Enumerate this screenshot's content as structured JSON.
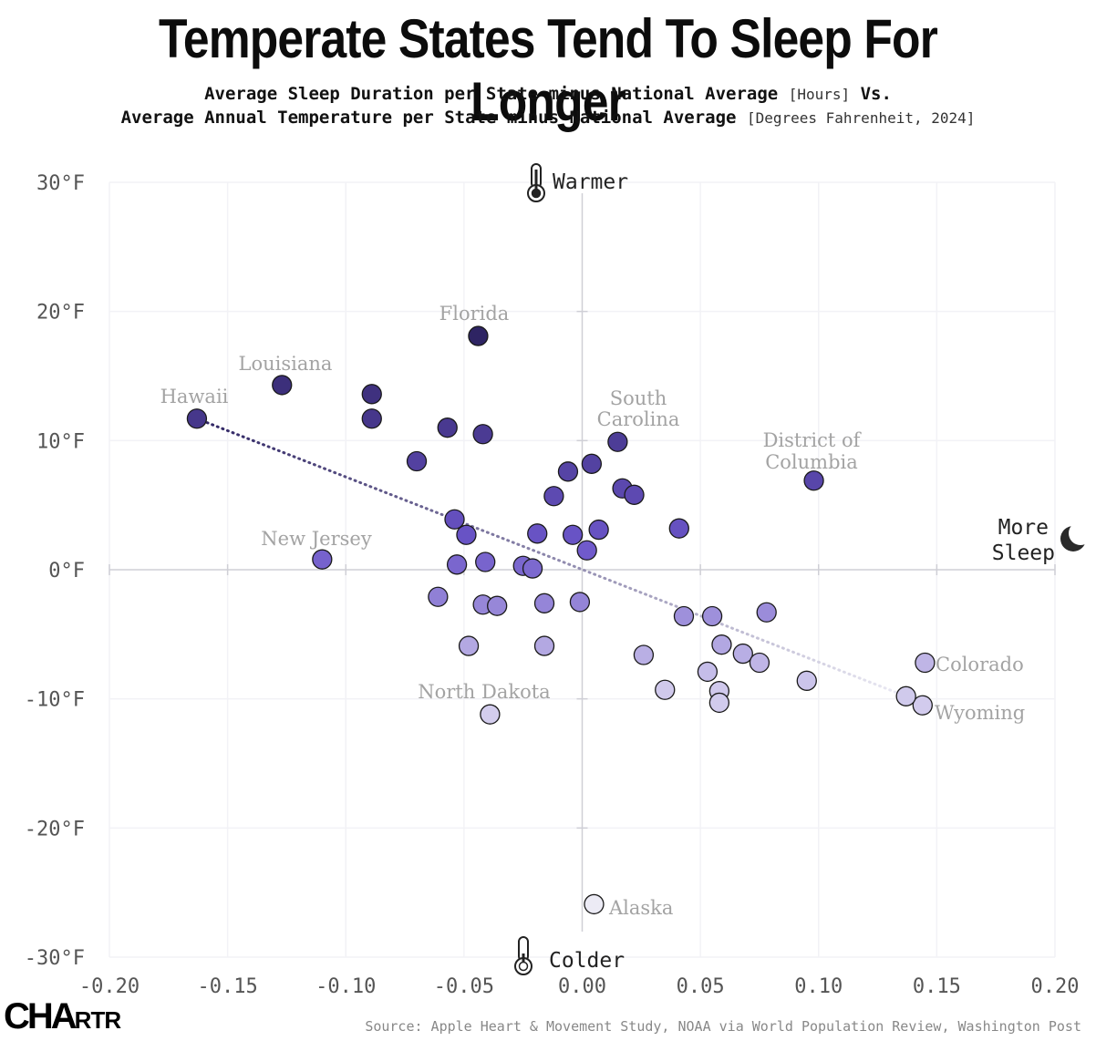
{
  "title": "Temperate States Tend To Sleep For Longer",
  "subtitle": {
    "line1_bold": "Average Sleep Duration per State minus National Average",
    "line1_light": "[Hours]",
    "line1_end": "Vs.",
    "line2_bold": "Average Annual Temperature per State minus National Average",
    "line2_light": "[Degrees Fahrenheit, 2024]"
  },
  "source": "Source: Apple Heart & Movement Study, NOAA via World Population Review, Washington Post",
  "logo": {
    "main": "CHA",
    "small": "RTR"
  },
  "colors": {
    "dark": "#2e2463",
    "mid": "#6b55c9",
    "light": "#cfc8ec",
    "lightest": "#ecebf5",
    "axis": "#cfcfd6",
    "grid": "#f2f2f6",
    "label": "#a3a3a3",
    "tick": "#555555"
  },
  "chart_data": {
    "type": "scatter",
    "xlim": [
      -0.2,
      0.2
    ],
    "ylim": [
      -30,
      30
    ],
    "x_ticks": [
      "-0.20",
      "-0.15",
      "-0.10",
      "-0.05",
      "0.00",
      "0.05",
      "0.10",
      "0.15",
      "0.20"
    ],
    "y_ticks": [
      "30°F",
      "20°F",
      "10°F",
      "0°F",
      "-10°F",
      "-20°F",
      "-30°F"
    ],
    "x_tick_values": [
      -0.2,
      -0.15,
      -0.1,
      -0.05,
      0.0,
      0.05,
      0.1,
      0.15,
      0.2
    ],
    "y_tick_values": [
      30,
      20,
      10,
      0,
      -10,
      -20,
      -30
    ],
    "axis_annotations": {
      "top": "Warmer",
      "bottom": "Colder",
      "right_line1": "More",
      "right_line2": "Sleep",
      "top_icon": "thermometer-hot-icon",
      "bottom_icon": "thermometer-cold-icon",
      "right_icon": "moon-icon"
    },
    "trendline": {
      "x": [
        -0.163,
        0.137
      ],
      "y": [
        11.7,
        -9.8
      ]
    },
    "points": [
      {
        "x": -0.163,
        "y": 11.7,
        "label": "Hawaii"
      },
      {
        "x": -0.127,
        "y": 14.3,
        "label": "Louisiana"
      },
      {
        "x": -0.11,
        "y": 0.8,
        "label": "New Jersey"
      },
      {
        "x": -0.044,
        "y": 18.1,
        "label": "Florida"
      },
      {
        "x": 0.015,
        "y": 9.9,
        "label": "South Carolina"
      },
      {
        "x": 0.098,
        "y": 6.9,
        "label": "District of Columbia"
      },
      {
        "x": -0.039,
        "y": -11.2,
        "label": "North Dakota"
      },
      {
        "x": 0.145,
        "y": -7.2,
        "label": "Colorado"
      },
      {
        "x": 0.144,
        "y": -10.5,
        "label": "Wyoming"
      },
      {
        "x": 0.005,
        "y": -25.9,
        "label": "Alaska"
      },
      {
        "x": -0.089,
        "y": 13.6
      },
      {
        "x": -0.089,
        "y": 11.7
      },
      {
        "x": -0.057,
        "y": 11.0
      },
      {
        "x": -0.042,
        "y": 10.5
      },
      {
        "x": -0.07,
        "y": 8.4
      },
      {
        "x": -0.006,
        "y": 7.6
      },
      {
        "x": 0.004,
        "y": 8.2
      },
      {
        "x": -0.012,
        "y": 5.7
      },
      {
        "x": 0.017,
        "y": 6.3
      },
      {
        "x": 0.022,
        "y": 5.8
      },
      {
        "x": -0.054,
        "y": 3.9
      },
      {
        "x": -0.049,
        "y": 2.7
      },
      {
        "x": -0.019,
        "y": 2.8
      },
      {
        "x": -0.004,
        "y": 2.7
      },
      {
        "x": 0.007,
        "y": 3.1
      },
      {
        "x": 0.041,
        "y": 3.2
      },
      {
        "x": 0.002,
        "y": 1.5
      },
      {
        "x": -0.053,
        "y": 0.4
      },
      {
        "x": -0.041,
        "y": 0.6
      },
      {
        "x": -0.025,
        "y": 0.3
      },
      {
        "x": -0.021,
        "y": 0.1
      },
      {
        "x": -0.061,
        "y": -2.1
      },
      {
        "x": -0.042,
        "y": -2.7
      },
      {
        "x": -0.036,
        "y": -2.8
      },
      {
        "x": -0.016,
        "y": -2.6
      },
      {
        "x": -0.001,
        "y": -2.5
      },
      {
        "x": 0.043,
        "y": -3.6
      },
      {
        "x": 0.055,
        "y": -3.6
      },
      {
        "x": 0.078,
        "y": -3.3
      },
      {
        "x": -0.048,
        "y": -5.9
      },
      {
        "x": -0.016,
        "y": -5.9
      },
      {
        "x": 0.026,
        "y": -6.6
      },
      {
        "x": 0.059,
        "y": -5.8
      },
      {
        "x": 0.068,
        "y": -6.5
      },
      {
        "x": 0.075,
        "y": -7.2
      },
      {
        "x": 0.053,
        "y": -7.9
      },
      {
        "x": 0.095,
        "y": -8.6
      },
      {
        "x": 0.035,
        "y": -9.3
      },
      {
        "x": 0.058,
        "y": -9.4
      },
      {
        "x": 0.058,
        "y": -10.3
      },
      {
        "x": 0.137,
        "y": -9.8
      }
    ]
  }
}
